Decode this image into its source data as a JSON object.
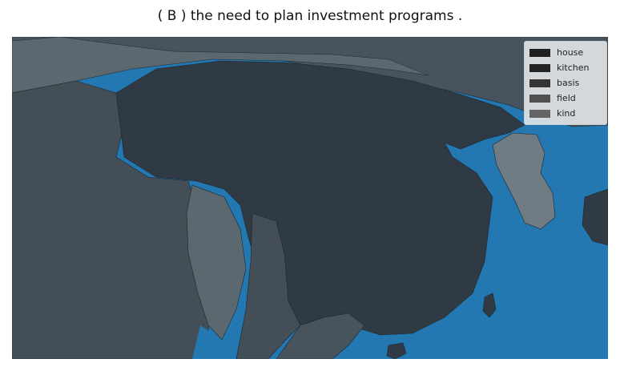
{
  "title": "( B ) the need to plan investment programs .",
  "legend": {
    "items": [
      {
        "label": "house",
        "color": "#1f1f1f"
      },
      {
        "label": "kitchen",
        "color": "#252525"
      },
      {
        "label": "basis",
        "color": "#353535"
      },
      {
        "label": "field",
        "color": "#505050"
      },
      {
        "label": "kind",
        "color": "#646464"
      }
    ]
  },
  "colors": {
    "ocean": "#2378b2",
    "region_dark": "#2f3a44",
    "region_mid": "#434e57",
    "region_light": "#5b6870",
    "region_pale": "#6f7c84",
    "region_far": "#48545d"
  }
}
